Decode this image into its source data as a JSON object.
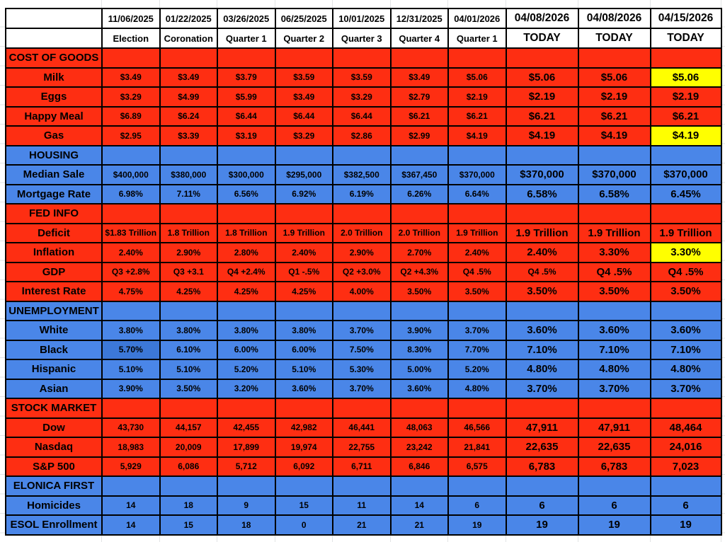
{
  "spreadsheet": {
    "columns": [
      {
        "date": "11/06/2025",
        "label": "Election",
        "emphasis": false
      },
      {
        "date": "01/22/2025",
        "label": "Coronation",
        "emphasis": false
      },
      {
        "date": "03/26/2025",
        "label": "Quarter 1",
        "emphasis": false
      },
      {
        "date": "06/25/2025",
        "label": "Quarter 2",
        "emphasis": false
      },
      {
        "date": "10/01/2025",
        "label": "Quarter 3",
        "emphasis": false
      },
      {
        "date": "12/31/2025",
        "label": "Quarter 4",
        "emphasis": false
      },
      {
        "date": "04/01/2026",
        "label": "Quarter 1",
        "emphasis": false
      },
      {
        "date": "04/08/2026",
        "label": "TODAY",
        "emphasis": true
      },
      {
        "date": "04/08/2026",
        "label": "TODAY",
        "emphasis": true
      },
      {
        "date": "04/15/2026",
        "label": "TODAY",
        "emphasis": true
      }
    ],
    "sections": [
      {
        "name": "COST OF GOODS",
        "theme": "red",
        "rows": [
          {
            "label": "Milk",
            "values": [
              "$3.49",
              "$3.49",
              "$3.79",
              "$3.59",
              "$3.59",
              "$3.49",
              "$5.06",
              "$5.06",
              "$5.06",
              "$5.06"
            ],
            "yellow": [
              9
            ],
            "alt": [],
            "small": []
          },
          {
            "label": "Eggs",
            "values": [
              "$3.29",
              "$4.99",
              "$5.99",
              "$3.49",
              "$3.29",
              "$2.79",
              "$2.19",
              "$2.19",
              "$2.19",
              "$2.19"
            ],
            "yellow": [],
            "alt": [],
            "small": []
          },
          {
            "label": "Happy Meal",
            "values": [
              "$6.89",
              "$6.24",
              "$6.44",
              "$6.44",
              "$6.44",
              "$6.21",
              "$6.21",
              "$6.21",
              "$6.21",
              "$6.21"
            ],
            "yellow": [],
            "alt": [],
            "small": []
          },
          {
            "label": "Gas",
            "values": [
              "$2.95",
              "$3.39",
              "$3.19",
              "$3.29",
              "$2.86",
              "$2.99",
              "$4.19",
              "$4.19",
              "$4.19",
              "$4.19"
            ],
            "yellow": [
              9
            ],
            "alt": [],
            "small": []
          }
        ]
      },
      {
        "name": "HOUSING",
        "theme": "blue",
        "rows": [
          {
            "label": "Median Sale",
            "values": [
              "$400,000",
              "$380,000",
              "$300,000",
              "$295,000",
              "$382,500",
              "$367,450",
              "$370,000",
              "$370,000",
              "$370,000",
              "$370,000"
            ],
            "yellow": [],
            "alt": [],
            "small": []
          },
          {
            "label": "Mortgage Rate",
            "values": [
              "6.98%",
              "7.11%",
              "6.56%",
              "6.92%",
              "6.19%",
              "6.26%",
              "6.64%",
              "6.58%",
              "6.58%",
              "6.45%"
            ],
            "yellow": [],
            "alt": [],
            "small": []
          }
        ]
      },
      {
        "name": "FED INFO",
        "theme": "red",
        "rows": [
          {
            "label": "Deficit",
            "values": [
              "$1.83 Trillion",
              "1.8 Trillion",
              "1.8 Trillion",
              "1.9 Trillion",
              "2.0 Trillion",
              "2.0 Trillion",
              "1.9 Trillion",
              "1.9 Trillion",
              "1.9 Trillion",
              "1.9 Trillion"
            ],
            "yellow": [],
            "alt": [],
            "small": []
          },
          {
            "label": "Inflation",
            "values": [
              "2.40%",
              "2.90%",
              "2.80%",
              "2.40%",
              "2.90%",
              "2.70%",
              "2.40%",
              "2.40%",
              "3.30%",
              "3.30%"
            ],
            "yellow": [
              9
            ],
            "alt": [],
            "small": []
          },
          {
            "label": "GDP",
            "values": [
              "Q3 +2.8%",
              "Q3 +3.1",
              "Q4 +2.4%",
              "Q1 -.5%",
              "Q2 +3.0%",
              "Q2 +4.3%",
              "Q4 .5%",
              "Q4 .5%",
              "Q4 .5%",
              "Q4 .5%"
            ],
            "yellow": [],
            "alt": [],
            "small": [
              7
            ]
          },
          {
            "label": "Interest Rate",
            "values": [
              "4.75%",
              "4.25%",
              "4.25%",
              "4.25%",
              "4.00%",
              "3.50%",
              "3.50%",
              "3.50%",
              "3.50%",
              "3.50%"
            ],
            "yellow": [],
            "alt": [],
            "small": []
          }
        ]
      },
      {
        "name": "UNEMPLOYMENT",
        "theme": "blue",
        "rows": [
          {
            "label": "White",
            "values": [
              "3.80%",
              "3.80%",
              "3.80%",
              "3.80%",
              "3.70%",
              "3.90%",
              "3.70%",
              "3.60%",
              "3.60%",
              "3.60%"
            ],
            "yellow": [],
            "alt": [],
            "small": []
          },
          {
            "label": "Black",
            "values": [
              "5.70%",
              "6.10%",
              "6.00%",
              "6.00%",
              "7.50%",
              "8.30%",
              "7.70%",
              "7.10%",
              "7.10%",
              "7.10%"
            ],
            "yellow": [],
            "alt": [
              0
            ],
            "small": []
          },
          {
            "label": "Hispanic",
            "values": [
              "5.10%",
              "5.10%",
              "5.20%",
              "5.10%",
              "5.30%",
              "5.00%",
              "5.20%",
              "4.80%",
              "4.80%",
              "4.80%"
            ],
            "yellow": [],
            "alt": [],
            "small": []
          },
          {
            "label": "Asian",
            "values": [
              "3.90%",
              "3.50%",
              "3.20%",
              "3.60%",
              "3.70%",
              "3.60%",
              "4.80%",
              "3.70%",
              "3.70%",
              "3.70%"
            ],
            "yellow": [],
            "alt": [],
            "small": []
          }
        ]
      },
      {
        "name": "STOCK MARKET",
        "theme": "red",
        "rows": [
          {
            "label": "Dow",
            "values": [
              "43,730",
              "44,157",
              "42,455",
              "42,982",
              "46,441",
              "48,063",
              "46,566",
              "47,911",
              "47,911",
              "48,464"
            ],
            "yellow": [],
            "alt": [],
            "small": []
          },
          {
            "label": "Nasdaq",
            "values": [
              "18,983",
              "20,009",
              "17,899",
              "19,974",
              "22,755",
              "23,242",
              "21,841",
              "22,635",
              "22,635",
              "24,016"
            ],
            "yellow": [],
            "alt": [],
            "small": []
          },
          {
            "label": "S&P 500",
            "values": [
              "5,929",
              "6,086",
              "5,712",
              "6,092",
              "6,711",
              "6,846",
              "6,575",
              "6,783",
              "6,783",
              "7,023"
            ],
            "yellow": [],
            "alt": [],
            "small": []
          }
        ]
      },
      {
        "name": "ELONICA FIRST",
        "theme": "blue",
        "rows": [
          {
            "label": "Homicides",
            "values": [
              "14",
              "18",
              "9",
              "15",
              "11",
              "14",
              "6",
              "6",
              "6",
              "6"
            ],
            "yellow": [],
            "alt": [],
            "small": []
          },
          {
            "label": "ESOL Enrollment",
            "values": [
              "14",
              "15",
              "18",
              "0",
              "21",
              "21",
              "19",
              "19",
              "19",
              "19"
            ],
            "yellow": [],
            "alt": [],
            "small": []
          }
        ]
      }
    ],
    "colors": {
      "red": "#fe2e12",
      "blue": "#4a86e8",
      "blue_alt": "#3c78d8",
      "yellow": "#ffff00",
      "grid": "#e2e4e5",
      "border": "#000000"
    }
  }
}
